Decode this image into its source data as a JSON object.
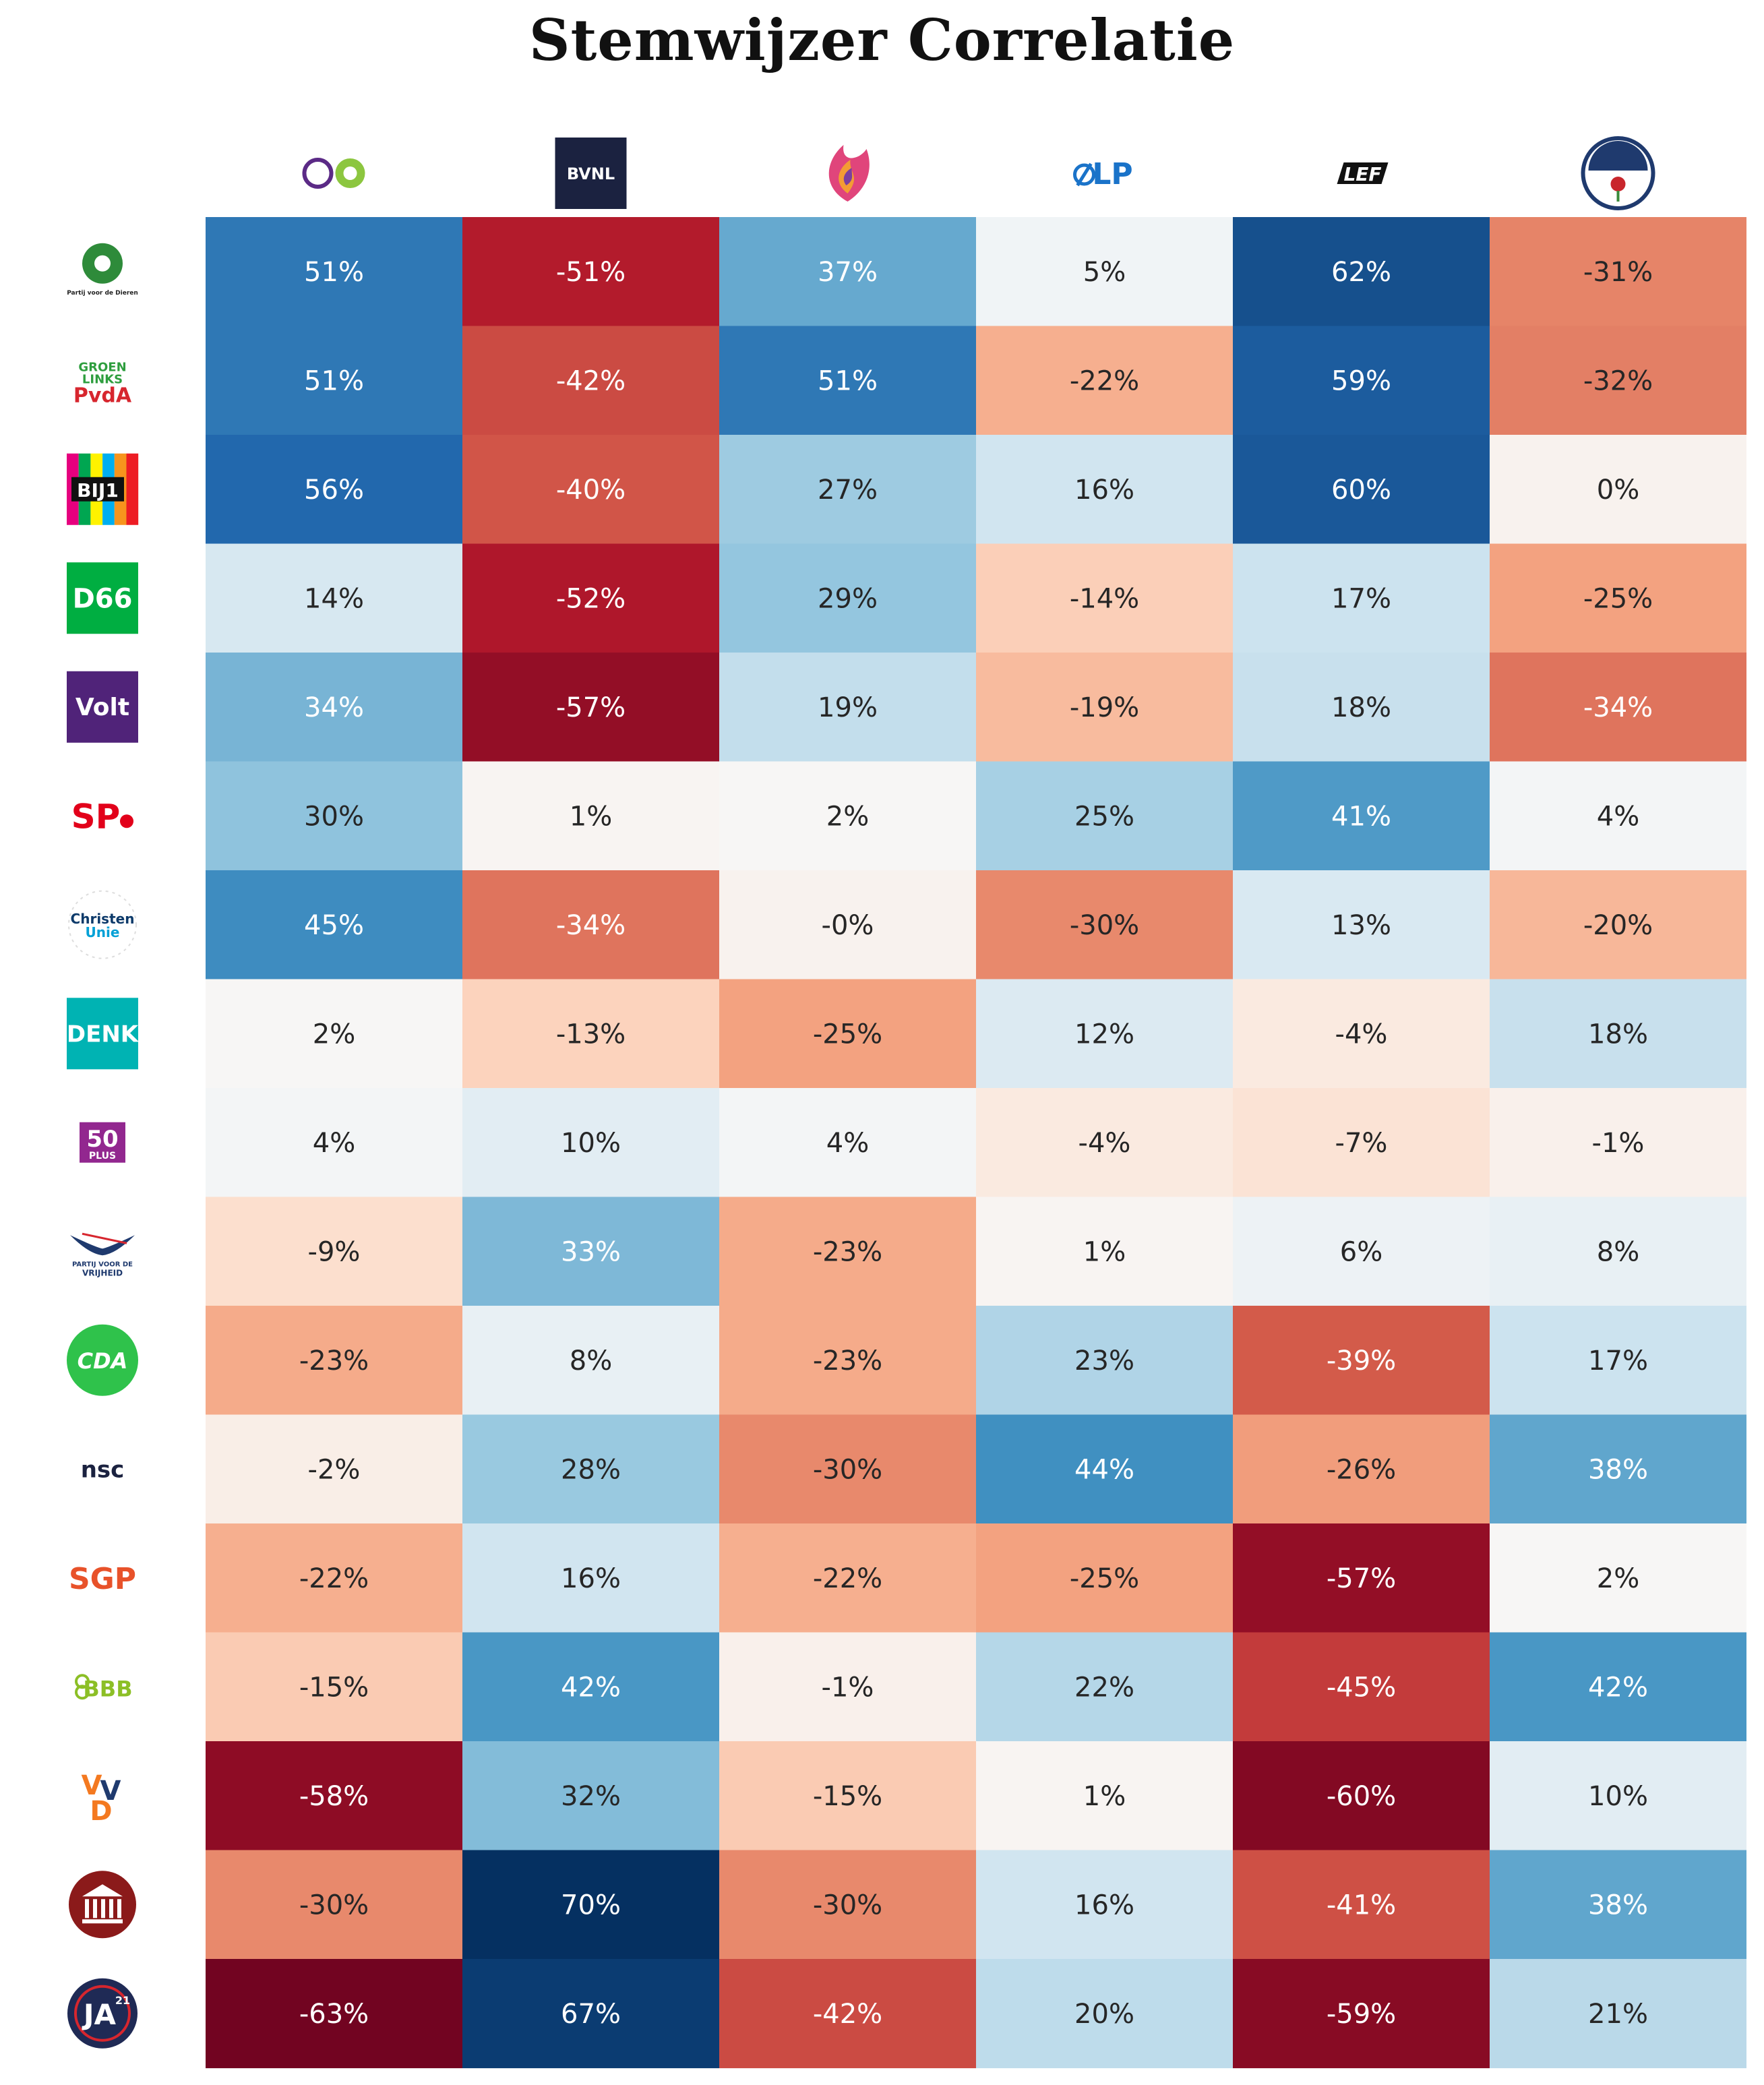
{
  "chart_data": {
    "type": "heatmap",
    "title": "Stemwijzer Correlatie",
    "columns": [
      {
        "icon": "piratenpartij-de-groenen-logo",
        "text": ""
      },
      {
        "icon": "bvnl-logo",
        "text": "BVNL"
      },
      {
        "icon": "flame-logo",
        "text": ""
      },
      {
        "icon": "lp-logo",
        "text": "LP"
      },
      {
        "icon": "lef-logo",
        "text": "LEF"
      },
      {
        "icon": "samen-voor-nederland-logo",
        "text": ""
      }
    ],
    "rows": [
      {
        "icon": "partij-voor-de-dieren-logo",
        "text": "Partij voor de Dieren"
      },
      {
        "icon": "groenlinks-pvda-logo",
        "text": "GROEN LINKS PvdA"
      },
      {
        "icon": "bij1-logo",
        "text": "BIJ1"
      },
      {
        "icon": "d66-logo",
        "text": "D66"
      },
      {
        "icon": "volt-logo",
        "text": "Volt"
      },
      {
        "icon": "sp-logo",
        "text": "SP"
      },
      {
        "icon": "christenunie-logo",
        "text": "Christen Unie"
      },
      {
        "icon": "denk-logo",
        "text": "DENK"
      },
      {
        "icon": "50plus-logo",
        "text": "50 PLUS"
      },
      {
        "icon": "pvv-logo",
        "text": "PARTIJ VOOR DE VRIJHEID"
      },
      {
        "icon": "cda-logo",
        "text": "CDA"
      },
      {
        "icon": "nsc-logo",
        "text": "nsc"
      },
      {
        "icon": "sgp-logo",
        "text": "SGP"
      },
      {
        "icon": "bbb-logo",
        "text": "BBB"
      },
      {
        "icon": "vvd-logo",
        "text": "VVD"
      },
      {
        "icon": "fvd-logo",
        "text": ""
      },
      {
        "icon": "ja21-logo",
        "text": "JA21"
      }
    ],
    "values": [
      [
        51,
        -51,
        37,
        5,
        62,
        -31
      ],
      [
        51,
        -42,
        51,
        -22,
        59,
        -32
      ],
      [
        56,
        -40,
        27,
        16,
        60,
        0
      ],
      [
        14,
        -52,
        29,
        -14,
        17,
        -25
      ],
      [
        34,
        -57,
        19,
        -19,
        18,
        -34
      ],
      [
        30,
        1,
        2,
        25,
        41,
        4
      ],
      [
        45,
        -34,
        -0.1,
        -30,
        13,
        -20
      ],
      [
        2,
        -13,
        -25,
        12,
        -4,
        18
      ],
      [
        4,
        10,
        4,
        -4,
        -7,
        -1
      ],
      [
        -9,
        33,
        -23,
        1,
        6,
        8
      ],
      [
        -23,
        8,
        -23,
        23,
        -39,
        17
      ],
      [
        -2,
        28,
        -30,
        44,
        -26,
        38
      ],
      [
        -22,
        16,
        -22,
        -25,
        -57,
        2
      ],
      [
        -15,
        42,
        -1,
        22,
        -45,
        42
      ],
      [
        -58,
        32,
        -15,
        1,
        -60,
        10
      ],
      [
        -30,
        70,
        -30,
        16,
        -41,
        38
      ],
      [
        -63,
        67,
        -42,
        20,
        -59,
        21
      ]
    ],
    "labels": [
      [
        "51%",
        "-51%",
        "37%",
        "5%",
        "62%",
        "-31%"
      ],
      [
        "51%",
        "-42%",
        "51%",
        "-22%",
        "59%",
        "-32%"
      ],
      [
        "56%",
        "-40%",
        "27%",
        "16%",
        "60%",
        "0%"
      ],
      [
        "14%",
        "-52%",
        "29%",
        "-14%",
        "17%",
        "-25%"
      ],
      [
        "34%",
        "-57%",
        "19%",
        "-19%",
        "18%",
        "-34%"
      ],
      [
        "30%",
        "1%",
        "2%",
        "25%",
        "41%",
        "4%"
      ],
      [
        "45%",
        "-34%",
        "-0%",
        "-30%",
        "13%",
        "-20%"
      ],
      [
        "2%",
        "-13%",
        "-25%",
        "12%",
        "-4%",
        "18%"
      ],
      [
        "4%",
        "10%",
        "4%",
        "-4%",
        "-7%",
        "-1%"
      ],
      [
        "-9%",
        "33%",
        "-23%",
        "1%",
        "6%",
        "8%"
      ],
      [
        "-23%",
        "8%",
        "-23%",
        "23%",
        "-39%",
        "17%"
      ],
      [
        "-2%",
        "28%",
        "-30%",
        "44%",
        "-26%",
        "38%"
      ],
      [
        "-22%",
        "16%",
        "-22%",
        "-25%",
        "-57%",
        "2%"
      ],
      [
        "-15%",
        "42%",
        "-1%",
        "22%",
        "-45%",
        "42%"
      ],
      [
        "-58%",
        "32%",
        "-15%",
        "1%",
        "-60%",
        "10%"
      ],
      [
        "-30%",
        "70%",
        "-30%",
        "16%",
        "-41%",
        "38%"
      ],
      [
        "-63%",
        "67%",
        "-42%",
        "20%",
        "-59%",
        "21%"
      ]
    ],
    "value_range": [
      -65,
      70
    ],
    "colormap": "RdBu (red = negative, blue = positive)",
    "colorbar": false,
    "grid": false
  }
}
